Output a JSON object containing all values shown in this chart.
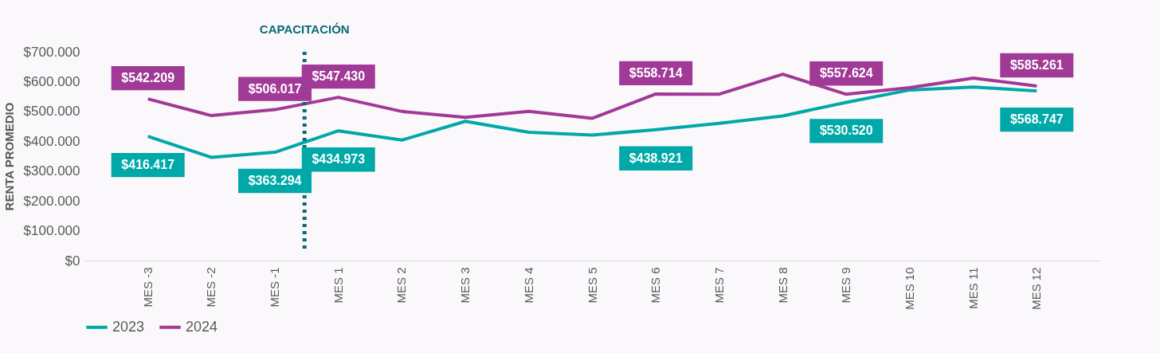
{
  "chart_data": {
    "type": "line",
    "ylabel": "RENTA PROMEDIO",
    "categories": [
      "MES -3",
      "MES -2",
      "MES -1",
      "MES 1",
      "MES 2",
      "MES 3",
      "MES 4",
      "MES 5",
      "MES 6",
      "MES 7",
      "MES 8",
      "MES 9",
      "MES 10",
      "MES 11",
      "MES 12"
    ],
    "series": [
      {
        "name": "2023",
        "color": "#00a8a8",
        "values": [
          416417,
          346000,
          363294,
          434973,
          404000,
          467000,
          430000,
          421000,
          438921,
          460000,
          485000,
          530520,
          572000,
          582000,
          568747
        ],
        "value_labels": [
          "$416.417",
          null,
          "$363.294",
          "$434.973",
          null,
          null,
          null,
          null,
          "$438.921",
          null,
          null,
          "$530.520",
          null,
          null,
          "$568.747"
        ]
      },
      {
        "name": "2024",
        "color": "#a03a96",
        "values": [
          542209,
          486000,
          506017,
          547430,
          500000,
          480000,
          500000,
          477000,
          558714,
          558000,
          625000,
          557624,
          580000,
          612000,
          585261
        ],
        "value_labels": [
          "$542.209",
          null,
          "$506.017",
          "$547.430",
          null,
          null,
          null,
          null,
          "$558.714",
          null,
          null,
          "$557.624",
          null,
          null,
          "$585.261"
        ]
      }
    ],
    "ylim": [
      0,
      700000
    ],
    "yticks": [
      {
        "value": 0,
        "label": "$0"
      },
      {
        "value": 100000,
        "label": "$100.000"
      },
      {
        "value": 200000,
        "label": "$200.000"
      },
      {
        "value": 300000,
        "label": "$300.000"
      },
      {
        "value": 400000,
        "label": "$400.000"
      },
      {
        "value": 500000,
        "label": "$500.000"
      },
      {
        "value": 600000,
        "label": "$600.000"
      },
      {
        "value": 700000,
        "label": "$700.000"
      }
    ],
    "ref_lines": [
      {
        "axis": "x",
        "value": "MES 1",
        "label": "CAPACITACIÓN",
        "color": "#0a6b74",
        "line_style": "dotted"
      }
    ],
    "grid": false,
    "legend": "bottom",
    "line_style": "solid",
    "marker": "none"
  }
}
